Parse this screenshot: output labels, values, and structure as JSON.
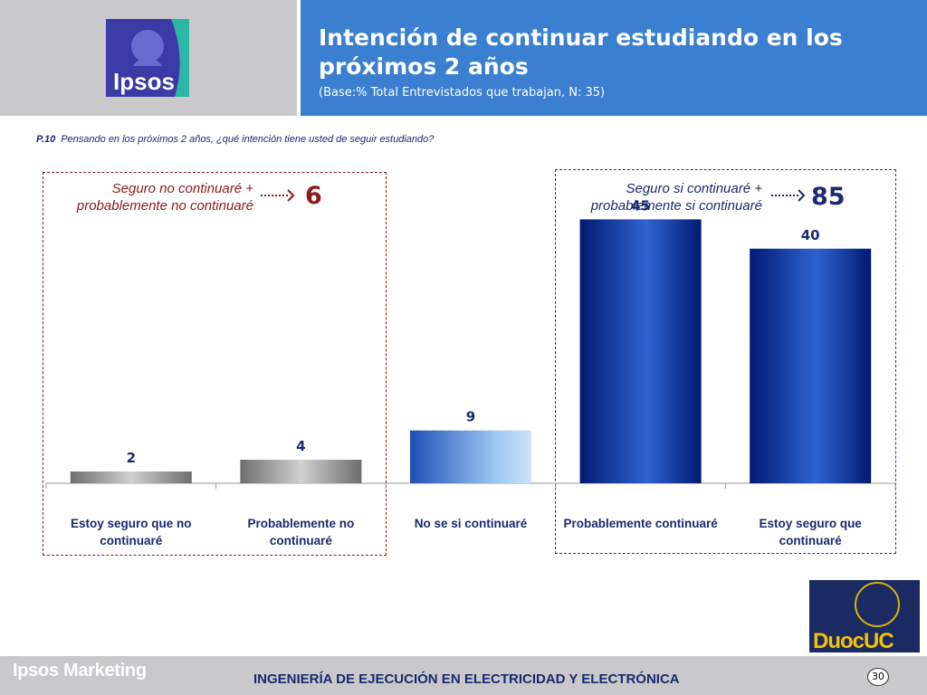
{
  "header": {
    "title": "Intención de continuar estudiando en los próximos 2 años",
    "subtitle": "(Base:% Total Entrevistados que trabajan, N: 35)",
    "logo_text": "Ipsos"
  },
  "question": {
    "code": "P.10",
    "text": "Pensando en los próximos 2 años, ¿qué intención tiene usted de seguir estudiando?"
  },
  "groups": {
    "negative": {
      "label": "Seguro no continuaré + probablemente no continuaré",
      "total": "6",
      "color": "#8b1a1a"
    },
    "positive": {
      "label": "Seguro si continuaré + probablemente si continuaré",
      "total": "85",
      "color": "#1a2a6e"
    }
  },
  "chart_data": {
    "type": "bar",
    "categories": [
      "Estoy seguro que no continuaré",
      "Probablemente no continuaré",
      "No se si continuaré",
      "Probablemente continuaré",
      "Estoy seguro que continuaré"
    ],
    "values": [
      2,
      4,
      9,
      45,
      40
    ],
    "ylim": [
      0,
      50
    ],
    "grid": false,
    "colors": [
      "gray",
      "gray",
      "lightblue",
      "darkblue",
      "darkblue"
    ]
  },
  "footer": {
    "brand": "Ipsos Marketing",
    "text": "INGENIERÍA DE EJECUCIÓN EN ELECTRICIDAD Y ELECTRÓNICA",
    "page": "30",
    "duoc_logo": "DuocUC"
  }
}
